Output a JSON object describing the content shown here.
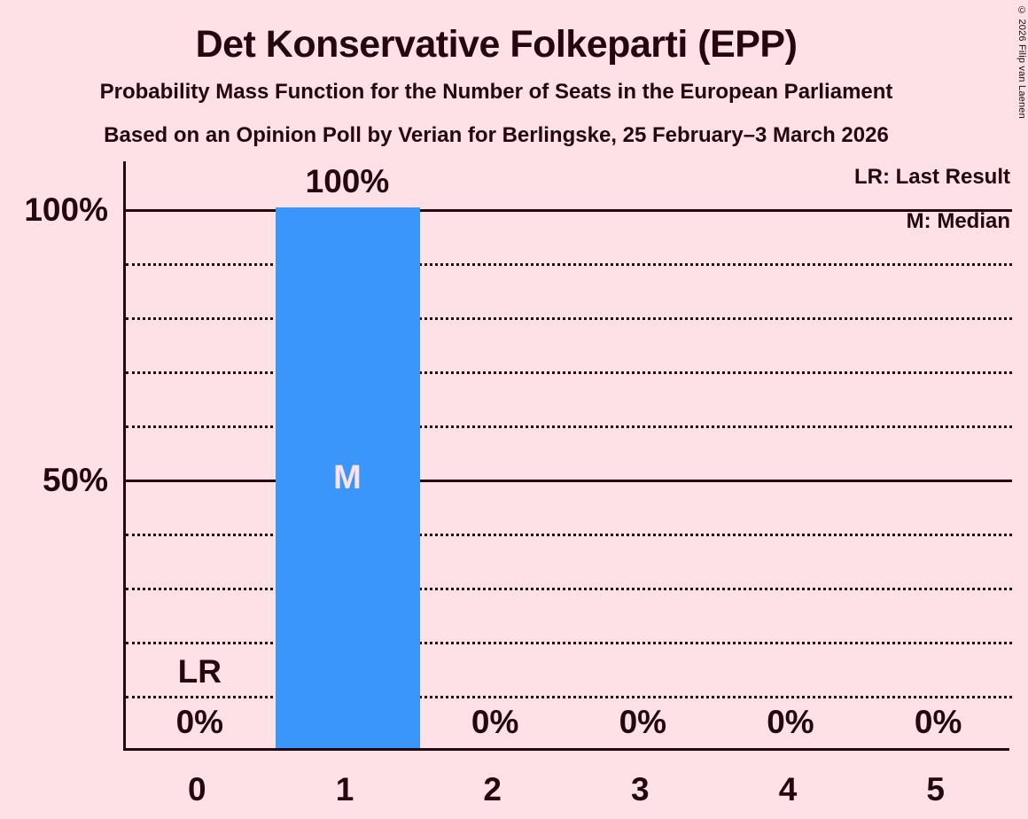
{
  "header": {
    "title": "Det Konservative Folkeparti (EPP)",
    "subtitle_line1": "Probability Mass Function for the Number of Seats in the European Parliament",
    "subtitle_line2": "Based on an Opinion Poll by Verian for Berlingske, 25 February–3 March 2026"
  },
  "copyright": "© 2026 Filip van Laenen",
  "legend": {
    "lr_label": "LR: Last Result",
    "m_label": "M: Median"
  },
  "colors": {
    "background": "#fce1e7",
    "text": "#240811",
    "bar": "#3a96fa",
    "bar_marker_text": "#fce1e7"
  },
  "chart_data": {
    "type": "bar",
    "title": "Det Konservative Folkeparti (EPP) — Probability Mass Function for the Number of Seats in the European Parliament",
    "xlabel": "",
    "ylabel": "",
    "categories": [
      "0",
      "1",
      "2",
      "3",
      "4",
      "5"
    ],
    "values": [
      0,
      100,
      0,
      0,
      0,
      0
    ],
    "value_labels": [
      "0%",
      "100%",
      "0%",
      "0%",
      "0%",
      "0%"
    ],
    "y_ticks": [
      {
        "pct": 100,
        "label": "100%"
      },
      {
        "pct": 50,
        "label": "50%"
      }
    ],
    "ylim": [
      0,
      100
    ],
    "gridlines_pct": [
      10,
      20,
      30,
      40,
      50,
      60,
      70,
      80,
      90,
      100
    ],
    "solid_gridlines_pct": [
      50,
      100
    ],
    "grid": "dotted every 10%, solid at 50% and 100%",
    "legend_position": "top-right",
    "last_result_seat_index": 0,
    "last_result_marker": "LR",
    "median_seat_index": 1,
    "median_marker": "M"
  }
}
